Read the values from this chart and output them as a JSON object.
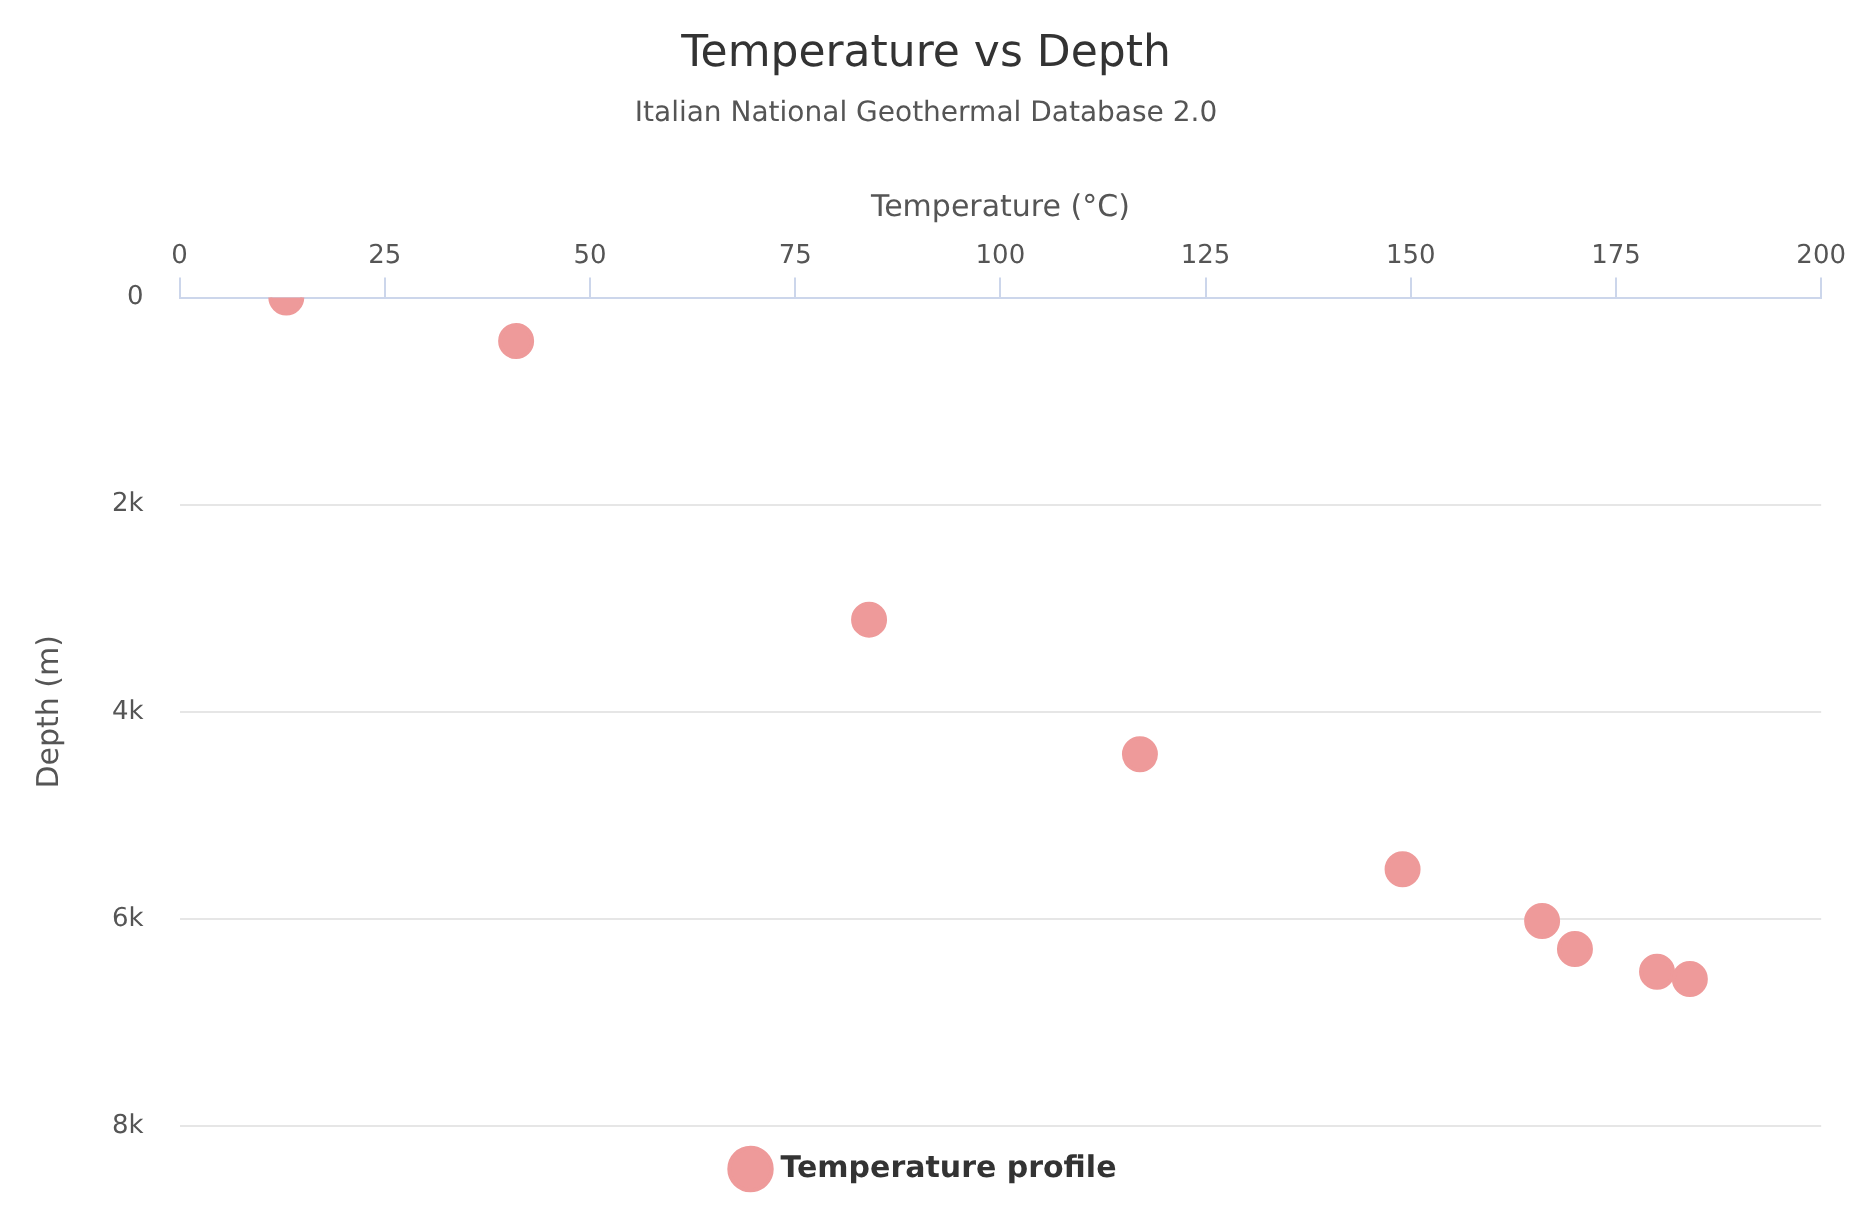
{
  "chart_data": {
    "type": "scatter",
    "title": "Temperature vs Depth",
    "subtitle": "Italian National Geothermal Database 2.0",
    "xlabel": "Temperature (°C)",
    "ylabel": "Depth (m)",
    "xlim": [
      0,
      200
    ],
    "xticks": [
      0,
      25,
      50,
      75,
      100,
      125,
      150,
      175,
      200
    ],
    "ylim": [
      8000,
      0
    ],
    "yticks": [
      0,
      {
        "value": 2000,
        "label": "2k"
      },
      {
        "value": 4000,
        "label": "4k"
      },
      {
        "value": 6000,
        "label": "6k"
      },
      {
        "value": 8000,
        "label": "8k"
      }
    ],
    "grid": "y",
    "legend": "bottom",
    "marker": "circle",
    "series": [
      {
        "name": "Temperature profile",
        "color": "#ee9a9a",
        "x": [
          13,
          41,
          84,
          117,
          149,
          166,
          170,
          180,
          184
        ],
        "values": [
          0,
          420,
          3110,
          4410,
          5520,
          6020,
          6290,
          6510,
          6580
        ]
      }
    ]
  }
}
